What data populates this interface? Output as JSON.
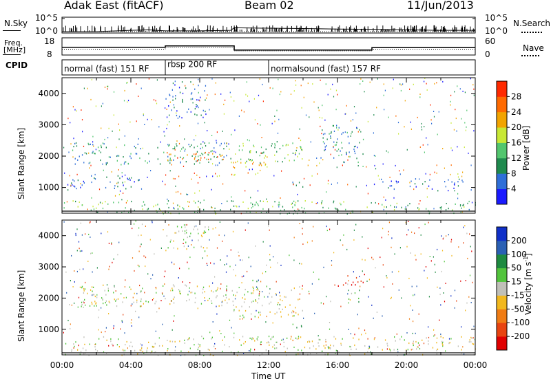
{
  "header": {
    "station": "Adak East (fitACF)",
    "beam": "Beam 02",
    "date": "11/Jun/2013"
  },
  "top_panels": {
    "nsky_label": "N.Sky",
    "nsearch_label": "N.Search",
    "count_ticks": [
      "10^5",
      "10^0"
    ],
    "freq_label_1": "Freq.",
    "freq_label_2": "[MHz]",
    "freq_ticks": [
      "18",
      "8"
    ],
    "nave_label": "Nave",
    "nave_ticks": [
      "60",
      "0"
    ],
    "cpid_label": "CPID",
    "modes": [
      {
        "label": "normal (fast) 151 RF",
        "start_h": 0,
        "end_h": 6
      },
      {
        "label": "rbsp 200 RF",
        "start_h": 6,
        "end_h": 12
      },
      {
        "label": "normalsound (fast) 157 RF",
        "start_h": 12,
        "end_h": 24
      }
    ]
  },
  "colorbars": {
    "power": {
      "label": "Power [dB]",
      "ticks": [
        "28",
        "24",
        "20",
        "16",
        "12",
        "8",
        "4"
      ],
      "colors": [
        "#1a1aff",
        "#2f6fd8",
        "#1f8a4e",
        "#52c66e",
        "#c8e835",
        "#f2a400",
        "#ff6a00",
        "#ff2a00"
      ]
    },
    "velocity": {
      "label_main": "Velocity [m s",
      "label_sup": "-1",
      "label_end": "]",
      "ticks": [
        "200",
        "100",
        "50",
        "15",
        "-15",
        "-50",
        "-100",
        "-200"
      ],
      "colors": [
        "#1030c8",
        "#2a60b4",
        "#1e8a40",
        "#52c43c",
        "#c0c0b8",
        "#f2b81e",
        "#f07c14",
        "#e84410",
        "#e00000"
      ]
    }
  },
  "chart_data": [
    {
      "type": "line",
      "title": "N.Sky / N.Search",
      "ylabel": "N.Sky",
      "ylim": [
        "10^0",
        "10^5"
      ],
      "x_hours": [
        0,
        2,
        4,
        5,
        6,
        8,
        9.8,
        10,
        12,
        14,
        16,
        18,
        20,
        22,
        24
      ],
      "series": [
        {
          "name": "N.Sky",
          "values": [
            1,
            1,
            3,
            5,
            2,
            2,
            3,
            30,
            20,
            15,
            10,
            8,
            5,
            3,
            3
          ]
        },
        {
          "name": "N.Search",
          "values": [
            1,
            1,
            1,
            1,
            1,
            1,
            1,
            1,
            1,
            1,
            1,
            1,
            1,
            1,
            1
          ]
        }
      ]
    },
    {
      "type": "line",
      "ylabel": "Freq. [MHz]",
      "ylim": [
        8,
        18
      ],
      "x_hours": [
        0,
        6,
        6,
        10,
        10,
        18,
        18,
        24
      ],
      "series": [
        {
          "name": "Freq.",
          "values": [
            12.5,
            12.5,
            13.3,
            13.3,
            10.9,
            10.9,
            12.3,
            12.3
          ]
        },
        {
          "name": "Nave",
          "values": [
            13,
            13,
            14,
            14,
            12,
            12,
            13,
            13
          ]
        }
      ]
    },
    {
      "type": "heatmap",
      "ylabel": "Slant Range [km]",
      "xlabel": "",
      "xlim": [
        0,
        24
      ],
      "ylim": [
        180,
        4500
      ],
      "y_ticks": [
        1000,
        2000,
        3000,
        4000
      ],
      "colorbar": "Power [dB]",
      "regions": [
        {
          "t0": 0.5,
          "t1": 9.8,
          "r0": 1750,
          "r1": 2450,
          "level": 2
        },
        {
          "t0": 6.0,
          "t1": 9.8,
          "r0": 1850,
          "r1": 2150,
          "level": 6
        },
        {
          "t0": 9.8,
          "t1": 12.0,
          "r0": 1400,
          "r1": 2000,
          "level": 5
        },
        {
          "t0": 10.0,
          "t1": 14.0,
          "r0": 1800,
          "r1": 2500,
          "level": 3
        },
        {
          "t0": 0.0,
          "t1": 4.5,
          "r0": 900,
          "r1": 1400,
          "level": 1
        },
        {
          "t0": 6.0,
          "t1": 8.5,
          "r0": 3200,
          "r1": 4400,
          "level": 1
        },
        {
          "t0": 13.0,
          "t1": 14.0,
          "r0": 1000,
          "r1": 1200,
          "level": 2
        },
        {
          "t0": 15.0,
          "t1": 17.5,
          "r0": 1800,
          "r1": 3000,
          "level": 2
        },
        {
          "t0": 18.0,
          "t1": 23.8,
          "r0": 900,
          "r1": 1300,
          "level": 1
        },
        {
          "t0": 0.0,
          "t1": 24.0,
          "r0": 180,
          "r1": 600,
          "level": 3
        }
      ]
    },
    {
      "type": "heatmap",
      "ylabel": "Slant Range [km]",
      "xlabel": "Time UT",
      "xlim": [
        0,
        24
      ],
      "ylim": [
        180,
        4500
      ],
      "y_ticks": [
        1000,
        2000,
        3000,
        4000
      ],
      "x_ticks": [
        "00:00",
        "04:00",
        "08:00",
        "12:00",
        "16:00",
        "20:00",
        "00:00"
      ],
      "colorbar": "Velocity [m s-1]",
      "regions": [
        {
          "t0": 1.0,
          "t1": 9.8,
          "r0": 1750,
          "r1": 2450,
          "level": 4
        },
        {
          "t0": 9.8,
          "t1": 14.0,
          "r0": 1400,
          "r1": 2400,
          "level": 4
        },
        {
          "t0": 11.0,
          "t1": 11.6,
          "r0": 2200,
          "r1": 2600,
          "level": 2
        },
        {
          "t0": 13.0,
          "t1": 14.0,
          "r0": 1000,
          "r1": 1200,
          "level": 3
        },
        {
          "t0": 13.0,
          "t1": 14.0,
          "r0": 650,
          "r1": 800,
          "level": 6
        },
        {
          "t0": 16.0,
          "t1": 17.7,
          "r0": 2400,
          "r1": 2900,
          "level": 8
        },
        {
          "t0": 16.5,
          "t1": 17.3,
          "r0": 1800,
          "r1": 2300,
          "level": 3
        },
        {
          "t0": 6.0,
          "t1": 8.5,
          "r0": 3500,
          "r1": 4400,
          "level": 4
        },
        {
          "t0": 0.0,
          "t1": 24.0,
          "r0": 180,
          "r1": 800,
          "level": 4
        }
      ]
    }
  ],
  "x_axis": {
    "label": "Time UT",
    "ticks": [
      "00:00",
      "04:00",
      "08:00",
      "12:00",
      "16:00",
      "20:00",
      "00:00"
    ]
  },
  "range_panels": {
    "ylabel": "Slant Range [km]",
    "ticks": [
      "1000",
      "2000",
      "3000",
      "4000"
    ]
  }
}
